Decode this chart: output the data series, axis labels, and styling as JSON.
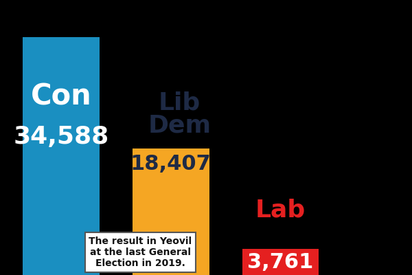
{
  "parties": [
    "Con",
    "Lib\nDem",
    "Lab"
  ],
  "values": [
    34588,
    18407,
    3761
  ],
  "value_labels": [
    "34,588",
    "18,407",
    "3,761"
  ],
  "bar_colors": [
    "#1a8fc1",
    "#f5a623",
    "#e52020"
  ],
  "party_label_colors": [
    "#ffffff",
    "#1e2a45",
    "#e52020"
  ],
  "value_label_colors": [
    "#ffffff",
    "#1e2a45",
    "#ffffff"
  ],
  "background_color": "#000000",
  "annotation_text": "The result in Yeovil\nat the last General\nElection in 2019.",
  "bar_width": 0.7,
  "ylim": [
    0,
    40000
  ],
  "figsize": [
    6.0,
    4.0
  ],
  "dpi": 100,
  "con_label_fontsize": 30,
  "con_value_fontsize": 26,
  "libdem_label_fontsize": 26,
  "libdem_value_fontsize": 22,
  "lab_label_fontsize": 26,
  "lab_value_fontsize": 22,
  "ann_fontsize": 10
}
